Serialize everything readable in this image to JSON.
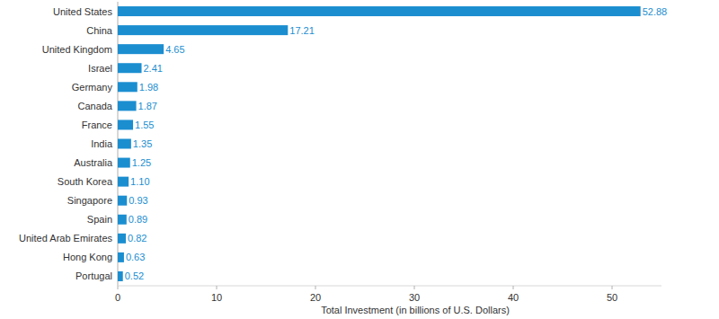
{
  "chart_data": {
    "type": "bar",
    "orientation": "horizontal",
    "x_label": "Total Investment (in billions of U.S. Dollars)",
    "categories": [
      "United States",
      "China",
      "United Kingdom",
      "Israel",
      "Germany",
      "Canada",
      "France",
      "India",
      "Australia",
      "South Korea",
      "Singapore",
      "Spain",
      "United Arab Emirates",
      "Hong Kong",
      "Portugal"
    ],
    "values": [
      52.88,
      17.21,
      4.65,
      2.41,
      1.98,
      1.87,
      1.55,
      1.35,
      1.25,
      1.1,
      0.93,
      0.89,
      0.82,
      0.63,
      0.52
    ],
    "value_labels": [
      "52.88",
      "17.21",
      "4.65",
      "2.41",
      "1.98",
      "1.87",
      "1.55",
      "1.35",
      "1.25",
      "1.10",
      "0.93",
      "0.89",
      "0.82",
      "0.63",
      "0.52"
    ],
    "color": "#1b8ed0",
    "xlim": [
      0,
      55
    ],
    "xticks": [
      0,
      10,
      20,
      30,
      40,
      50
    ],
    "grid": false,
    "data_labels": true
  }
}
